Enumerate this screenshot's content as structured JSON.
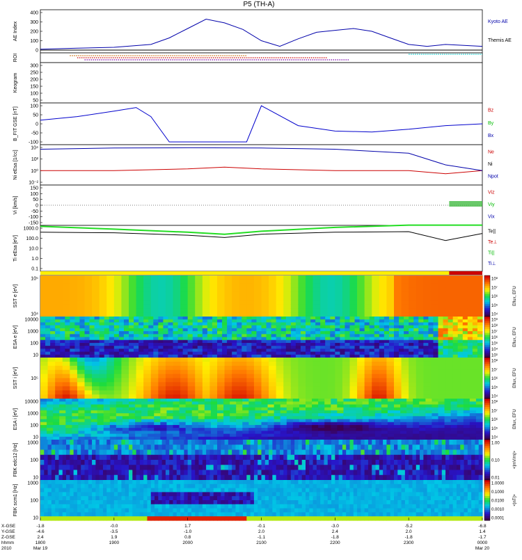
{
  "title": "P5 (TH-A)",
  "panels": [
    {
      "id": "ae",
      "ylabel": "AE Index",
      "yticks": [
        "400",
        "300",
        "200",
        "100",
        "0"
      ],
      "legend": [
        {
          "text": "Kyoto AE",
          "color": "#0000aa"
        },
        {
          "text": "Themis AE",
          "color": "#000000"
        }
      ]
    },
    {
      "id": "roi",
      "ylabel": "ROI",
      "yticks": [],
      "legend": []
    },
    {
      "id": "keogram",
      "ylabel": "Keogram",
      "yticks": [
        "300",
        "250",
        "200",
        "150",
        "100",
        "50"
      ],
      "legend": []
    },
    {
      "id": "bfield",
      "ylabel": "B_FIT GSE [nT]",
      "yticks": [
        "100",
        "50",
        "0",
        "-50",
        "-100"
      ],
      "legend": [
        {
          "text": "Bz",
          "color": "#cc0000"
        },
        {
          "text": "By",
          "color": "#00bb00"
        },
        {
          "text": "Bx",
          "color": "#0000aa"
        }
      ]
    },
    {
      "id": "density",
      "ylabel": "Ni eEsa [1/cc]",
      "yticks": [
        "10⁴",
        "10²",
        "10⁰",
        "10⁻²"
      ],
      "legend": [
        {
          "text": "Ne",
          "color": "#cc0000"
        },
        {
          "text": "Ni",
          "color": "#000000"
        },
        {
          "text": "Npot",
          "color": "#0000aa"
        }
      ]
    },
    {
      "id": "velocity",
      "ylabel": "Vi [km/s]",
      "yticks": [
        "150",
        "100",
        "50",
        "0",
        "-50",
        "-100",
        "-150"
      ],
      "legend": [
        {
          "text": "Viz",
          "color": "#cc0000"
        },
        {
          "text": "Viy",
          "color": "#00bb00"
        },
        {
          "text": "Vix",
          "color": "#0000aa"
        }
      ]
    },
    {
      "id": "temp",
      "ylabel": "Ti eEsa [eV]",
      "yticks": [
        "1000.0",
        "100.0",
        "10.0",
        "1.0",
        "0.1"
      ],
      "legend": [
        {
          "text": "Te||",
          "color": "#000000"
        },
        {
          "text": "Te⊥",
          "color": "#cc0000"
        },
        {
          "text": "Ti||",
          "color": "#00bb00"
        },
        {
          "text": "Ti⊥",
          "color": "#0000aa"
        }
      ]
    },
    {
      "id": "sst_e",
      "ylabel": "SST e [eV]",
      "yticks": [
        "10⁵",
        "10⁴"
      ],
      "colorbar": [
        "10⁸",
        "10⁷",
        "10⁶",
        "10⁵",
        "10⁴"
      ],
      "cblabel": "Eflux, EFU"
    },
    {
      "id": "esa_e",
      "ylabel": "ESA e [eV]",
      "yticks": [
        "10000",
        "1000",
        "100",
        "10"
      ],
      "colorbar": [
        "10⁹",
        "10⁸",
        "10⁷",
        "10⁶",
        "10⁵",
        "10⁴",
        "10³"
      ],
      "cblabel": "Eflux, EFU"
    },
    {
      "id": "sst_i",
      "ylabel": "SST i [eV]",
      "yticks": [
        "10⁵"
      ],
      "colorbar": [
        "10⁸",
        "10⁷",
        "10⁶",
        "10⁵",
        "10⁴"
      ],
      "cblabel": "Eflux, EFU"
    },
    {
      "id": "esa_i",
      "ylabel": "ESA i [eV]",
      "yticks": [
        "10000",
        "1000",
        "100",
        "10"
      ],
      "colorbar": [
        "10⁸",
        "10⁷",
        "10⁶",
        "10⁵",
        "10⁴"
      ],
      "cblabel": "Eflux, EFU"
    },
    {
      "id": "fbk_e",
      "ylabel": "FBK edc12 [Hz]",
      "yticks": [
        "1000",
        "100",
        "10"
      ],
      "colorbar": [
        "1.00",
        "0.10",
        "0.01"
      ],
      "cblabel": "<|mV/m|>"
    },
    {
      "id": "fbk_b",
      "ylabel": "FBK scm1 [Hz]",
      "yticks": [
        "1000",
        "100",
        "10"
      ],
      "colorbar": [
        "1.0000",
        "0.1000",
        "0.0100",
        "0.0010",
        "0.0001"
      ],
      "cblabel": "<|nT|>"
    }
  ],
  "xaxis": {
    "row_labels": [
      "X-GSE",
      "Y-GSE",
      "Z-GSE",
      "hhmm",
      "2010"
    ],
    "columns": [
      {
        "x": "-1.8",
        "y": "-4.6",
        "z": "2.4",
        "t": "1800",
        "d": "Mar 19"
      },
      {
        "x": "-0.0",
        "y": "-3.5",
        "z": "1.9",
        "t": "1900",
        "d": ""
      },
      {
        "x": "1.7",
        "y": "-1.0",
        "z": "0.8",
        "t": "2000",
        "d": ""
      },
      {
        "x": "-0.1",
        "y": "2.0",
        "z": "-1.1",
        "t": "2100",
        "d": ""
      },
      {
        "x": "-3.0",
        "y": "2.4",
        "z": "-1.8",
        "t": "2200",
        "d": ""
      },
      {
        "x": "-5.2",
        "y": "2.0",
        "z": "-1.8",
        "t": "2300",
        "d": ""
      },
      {
        "x": "-6.8",
        "y": "1.4",
        "z": "-1.7",
        "t": "0000",
        "d": "Mar 20"
      }
    ]
  },
  "chart_data": {
    "type": "line",
    "title": "P5 (TH-A)",
    "time_range": [
      "2010-03-19 18:00",
      "2010-03-20 00:00"
    ],
    "series": [
      {
        "name": "Kyoto AE",
        "panel": "ae",
        "t_hours": [
          18.0,
          18.5,
          19.0,
          19.5,
          19.75,
          20.0,
          20.25,
          20.5,
          20.75,
          21.0,
          21.25,
          21.5,
          21.75,
          22.0,
          22.25,
          22.5,
          22.75,
          23.0,
          23.25,
          23.5,
          23.75,
          24.0
        ],
        "values": [
          10,
          20,
          30,
          60,
          130,
          230,
          330,
          290,
          220,
          100,
          40,
          120,
          190,
          210,
          230,
          200,
          130,
          60,
          40,
          60,
          50,
          40
        ]
      },
      {
        "name": "Themis AE",
        "panel": "ae",
        "t_hours": [
          18.0,
          19.0,
          20.0,
          21.0,
          22.0,
          23.0,
          24.0
        ],
        "values": [
          0,
          0,
          0,
          0,
          0,
          0,
          0
        ]
      },
      {
        "name": "Bx",
        "panel": "bfield",
        "t_hours": [
          18.0,
          18.5,
          19.0,
          19.3,
          19.5,
          19.75,
          20.0,
          20.5,
          20.8,
          21.0,
          21.5,
          22.0,
          22.5,
          23.0,
          23.5,
          24.0
        ],
        "values": [
          20,
          40,
          70,
          90,
          40,
          -100,
          -100,
          -100,
          -100,
          100,
          -10,
          -40,
          -45,
          -30,
          -10,
          0
        ]
      },
      {
        "name": "Ne",
        "panel": "density",
        "t_hours": [
          18.0,
          19.0,
          20.0,
          20.5,
          21.0,
          22.0,
          23.0,
          23.5,
          24.0
        ],
        "values": [
          1.0,
          1.0,
          2.0,
          4.0,
          2.0,
          1.0,
          1.0,
          0.3,
          1.0
        ]
      },
      {
        "name": "Npot",
        "panel": "density",
        "t_hours": [
          18.0,
          19.0,
          20.0,
          21.0,
          22.0,
          23.0,
          23.5,
          24.0
        ],
        "values": [
          5000,
          8000,
          9000,
          8000,
          5000,
          1000,
          10,
          1
        ]
      },
      {
        "name": "Ti||",
        "panel": "temp",
        "t_hours": [
          18.0,
          19.0,
          20.0,
          20.5,
          21.0,
          22.0,
          23.0,
          24.0
        ],
        "values": [
          1500,
          800,
          400,
          250,
          500,
          1200,
          2000,
          2000
        ]
      },
      {
        "name": "Te||",
        "panel": "temp",
        "t_hours": [
          18.0,
          19.0,
          20.0,
          20.5,
          21.0,
          22.0,
          23.0,
          23.5,
          24.0
        ],
        "values": [
          400,
          350,
          200,
          120,
          250,
          400,
          450,
          60,
          300
        ]
      }
    ]
  }
}
